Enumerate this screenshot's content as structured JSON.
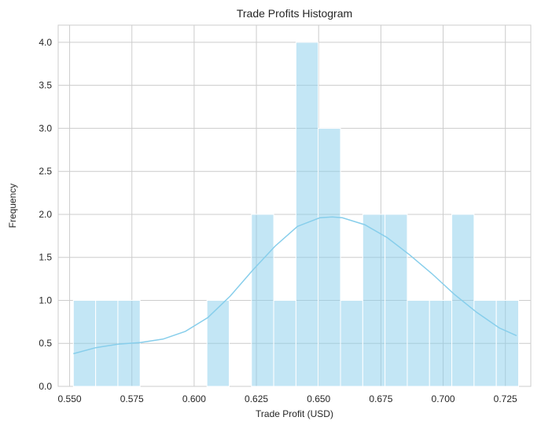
{
  "chart_data": {
    "type": "bar",
    "title": "Trade Profits Histogram",
    "xlabel": "Trade Profit (USD)",
    "ylabel": "Frequency",
    "xlim": [
      0.5454,
      0.7352
    ],
    "ylim": [
      0,
      4.2
    ],
    "xticks": [
      "0.550",
      "0.575",
      "0.600",
      "0.625",
      "0.650",
      "0.675",
      "0.700",
      "0.725"
    ],
    "xtick_values": [
      0.55,
      0.575,
      0.6,
      0.625,
      0.65,
      0.675,
      0.7,
      0.725
    ],
    "yticks": [
      "0.0",
      "0.5",
      "1.0",
      "1.5",
      "2.0",
      "2.5",
      "3.0",
      "3.5",
      "4.0"
    ],
    "ytick_values": [
      0,
      0.5,
      1,
      1.5,
      2,
      2.5,
      3,
      3.5,
      4
    ],
    "grid": true,
    "bins": {
      "start": 0.5515,
      "width": 0.00894,
      "counts": [
        1,
        1,
        1,
        0,
        0,
        0,
        1,
        0,
        2,
        1,
        4,
        3,
        1,
        2,
        2,
        1,
        1,
        2,
        1,
        1
      ]
    },
    "kde": {
      "x": [
        0.5515,
        0.5605,
        0.5695,
        0.5785,
        0.5875,
        0.5965,
        0.6055,
        0.6145,
        0.6235,
        0.6325,
        0.6415,
        0.6505,
        0.6555,
        0.6595,
        0.6685,
        0.6775,
        0.6865,
        0.6955,
        0.7045,
        0.7135,
        0.7225,
        0.7295
      ],
      "y": [
        0.38,
        0.45,
        0.49,
        0.51,
        0.55,
        0.64,
        0.8,
        1.05,
        1.35,
        1.63,
        1.86,
        1.96,
        1.97,
        1.96,
        1.88,
        1.73,
        1.53,
        1.31,
        1.07,
        0.86,
        0.68,
        0.59
      ]
    },
    "colors": {
      "bar": "#87ceeb",
      "kde": "#87ceeb",
      "grid": "#cccccc"
    }
  }
}
